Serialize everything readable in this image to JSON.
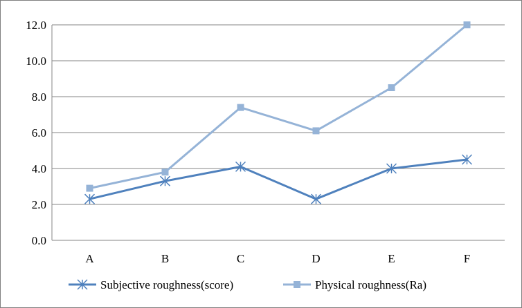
{
  "chart_data": {
    "type": "line",
    "categories": [
      "A",
      "B",
      "C",
      "D",
      "E",
      "F"
    ],
    "series": [
      {
        "name": "Subjective roughness(score)",
        "values": [
          2.3,
          3.3,
          4.1,
          2.3,
          4.0,
          4.5
        ],
        "color": "#4f81bd",
        "marker": "star"
      },
      {
        "name": "Physical roughness(Ra)",
        "values": [
          2.9,
          3.8,
          7.4,
          6.1,
          8.5,
          12.0
        ],
        "color": "#95b3d7",
        "marker": "square"
      }
    ],
    "y_ticks": [
      "0.0",
      "2.0",
      "4.0",
      "6.0",
      "8.0",
      "10.0",
      "12.0"
    ],
    "ylim": [
      0,
      12
    ],
    "grid": true,
    "legend_position": "bottom",
    "gridline_color": "#868686"
  }
}
